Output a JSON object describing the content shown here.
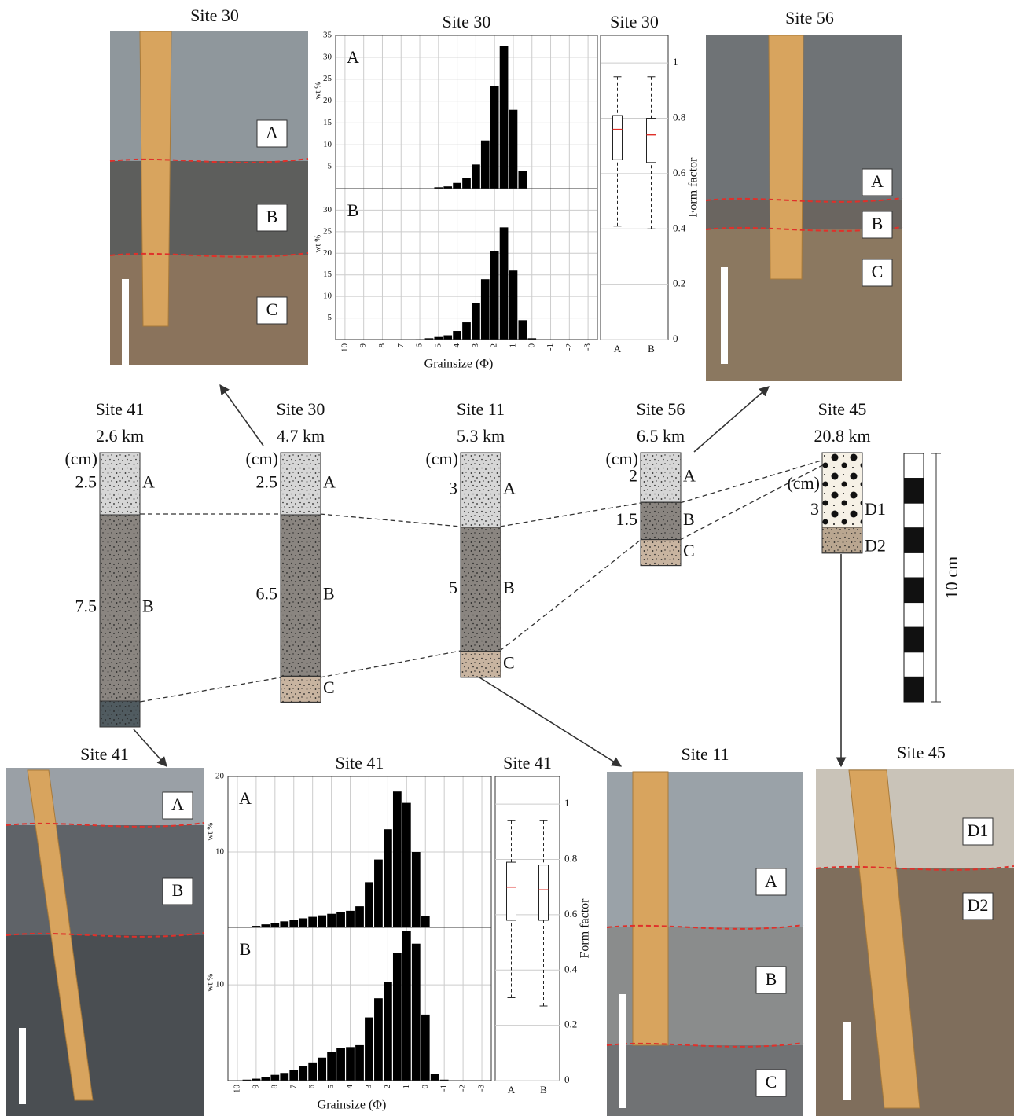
{
  "chart_data": [
    {
      "type": "bar",
      "title": "Site 30",
      "panel": "A",
      "ylabel": "wt %",
      "color": "#000000",
      "x": [
        5,
        4.5,
        4,
        3.5,
        3,
        2.5,
        2,
        1.5,
        1,
        0.5
      ],
      "values": [
        0.3,
        0.5,
        1.3,
        2.5,
        5.5,
        11,
        23.5,
        32.5,
        18,
        4
      ],
      "xlim": [
        10.5,
        -3.5
      ],
      "xticks": [
        10,
        9,
        8,
        7,
        6,
        5,
        4,
        3,
        2,
        1,
        0,
        -1,
        -2,
        -3
      ],
      "ylim": [
        0,
        35
      ],
      "yticks": [
        5,
        10,
        15,
        20,
        25,
        30,
        35
      ],
      "grid": true
    },
    {
      "type": "bar",
      "panel": "B",
      "ylabel": "wt %",
      "xlabel": "Grainsize (Φ)",
      "color": "#000000",
      "x": [
        6,
        5.5,
        5,
        4.5,
        4,
        3.5,
        3,
        2.5,
        2,
        1.5,
        1,
        0.5,
        0
      ],
      "values": [
        0.1,
        0.3,
        0.6,
        1,
        2,
        4,
        8.5,
        14,
        20.5,
        26,
        16,
        4.5,
        0.3
      ],
      "xlim": [
        10.5,
        -3.5
      ],
      "xticks": [
        10,
        9,
        8,
        7,
        6,
        5,
        4,
        3,
        2,
        1,
        0,
        -1,
        -2,
        -3
      ],
      "ylim": [
        0,
        35
      ],
      "yticks": [
        5,
        10,
        15,
        20,
        25,
        30
      ],
      "grid": true
    },
    {
      "type": "box",
      "title": "Site 30",
      "ylabel": "Form factor",
      "categories": [
        "A",
        "B"
      ],
      "median_color": "#e0302a",
      "boxes": [
        {
          "min": 0.41,
          "q1": 0.65,
          "median": 0.76,
          "q3": 0.81,
          "max": 0.95
        },
        {
          "min": 0.4,
          "q1": 0.64,
          "median": 0.74,
          "q3": 0.8,
          "max": 0.95
        }
      ],
      "ylim": [
        0,
        1.1
      ],
      "yticks": [
        0,
        0.2,
        0.4,
        0.6,
        0.8,
        1
      ],
      "grid": true
    },
    {
      "type": "bar",
      "title": "Site 41",
      "panel": "A",
      "ylabel": "wt %",
      "color": "#000000",
      "x": [
        9,
        8.5,
        8,
        7.5,
        7,
        6.5,
        6,
        5.5,
        5,
        4.5,
        4,
        3.5,
        3,
        2.5,
        2,
        1.5,
        1,
        0.5,
        0
      ],
      "values": [
        0.2,
        0.4,
        0.6,
        0.8,
        1,
        1.2,
        1.4,
        1.6,
        1.8,
        2,
        2.2,
        2.8,
        6,
        9,
        13,
        18,
        16.5,
        10,
        1.5
      ],
      "xlim": [
        10.5,
        -3.5
      ],
      "xticks": [
        10,
        9,
        8,
        7,
        6,
        5,
        4,
        3,
        2,
        1,
        0,
        -1,
        -2,
        -3
      ],
      "ylim": [
        0,
        20
      ],
      "yticks": [
        10,
        20
      ],
      "grid": true
    },
    {
      "type": "bar",
      "panel": "B",
      "ylabel": "wt %",
      "xlabel": "Grainsize (Φ)",
      "color": "#000000",
      "x": [
        9.5,
        9,
        8.5,
        8,
        7.5,
        7,
        6.5,
        6,
        5.5,
        5,
        4.5,
        4,
        3.5,
        3,
        2.5,
        2,
        1.5,
        1,
        0.5,
        0,
        -0.5,
        -1
      ],
      "values": [
        0.1,
        0.2,
        0.4,
        0.6,
        0.8,
        1.1,
        1.5,
        1.9,
        2.4,
        3,
        3.4,
        3.5,
        3.7,
        6.6,
        8.6,
        10.3,
        13.3,
        15.6,
        14.3,
        6.9,
        0.7,
        0.1
      ],
      "xlim": [
        10.5,
        -3.5
      ],
      "xticks": [
        10,
        9,
        8,
        7,
        6,
        5,
        4,
        3,
        2,
        1,
        0,
        -1,
        -2,
        -3
      ],
      "ylim": [
        0,
        16
      ],
      "yticks": [
        10
      ],
      "grid": true
    },
    {
      "type": "box",
      "title": "Site 41",
      "ylabel": "Form factor",
      "categories": [
        "A",
        "B"
      ],
      "median_color": "#e0302a",
      "boxes": [
        {
          "min": 0.3,
          "q1": 0.58,
          "median": 0.7,
          "q3": 0.79,
          "max": 0.94
        },
        {
          "min": 0.27,
          "q1": 0.58,
          "median": 0.69,
          "q3": 0.78,
          "max": 0.94
        }
      ],
      "ylim": [
        0,
        1.1
      ],
      "yticks": [
        0,
        0.2,
        0.4,
        0.6,
        0.8,
        1
      ],
      "grid": true
    }
  ],
  "sections": [
    {
      "site": "Site 41",
      "distance": "2.6 km",
      "unit_label": "(cm)",
      "units": [
        {
          "label": "A",
          "thickness": 2.5,
          "color": "#d6d6d6",
          "texture": "fine"
        },
        {
          "label": "B",
          "thickness": 7.5,
          "color": "#8a8580",
          "texture": "fine"
        },
        {
          "label": null,
          "thickness": null,
          "color": "#505b60",
          "texture": "fine"
        }
      ]
    },
    {
      "site": "Site 30",
      "distance": "4.7 km",
      "unit_label": "(cm)",
      "units": [
        {
          "label": "A",
          "thickness": 2.5,
          "color": "#d6d6d6",
          "texture": "fine"
        },
        {
          "label": "B",
          "thickness": 6.5,
          "color": "#8a8580",
          "texture": "fine"
        },
        {
          "label": "C",
          "thickness": null,
          "color": "#c8b4a0",
          "texture": "fine"
        }
      ]
    },
    {
      "site": "Site 11",
      "distance": "5.3 km",
      "unit_label": "(cm)",
      "units": [
        {
          "label": "A",
          "thickness": 3,
          "color": "#d6d6d6",
          "texture": "fine"
        },
        {
          "label": "B",
          "thickness": 5,
          "color": "#8a8580",
          "texture": "fine"
        },
        {
          "label": "C",
          "thickness": null,
          "color": "#c8b4a0",
          "texture": "fine"
        }
      ]
    },
    {
      "site": "Site 56",
      "distance": "6.5 km",
      "unit_label": "(cm)",
      "units": [
        {
          "label": "A",
          "thickness": 2,
          "color": "#d6d6d6",
          "texture": "fine"
        },
        {
          "label": "B",
          "thickness": 1.5,
          "color": "#8a8580",
          "texture": "fine"
        },
        {
          "label": "C",
          "thickness": null,
          "color": "#c8b4a0",
          "texture": "fine"
        }
      ]
    },
    {
      "site": "Site 45",
      "distance": "20.8 km",
      "unit_label": "(cm)",
      "units": [
        {
          "label": "D1",
          "thickness": 3,
          "color": "#f6f1e6",
          "texture": "coarse"
        },
        {
          "label": "D2",
          "thickness": null,
          "color": "#b9a690",
          "texture": "fine"
        }
      ]
    }
  ],
  "scale_bar": {
    "label": "10 cm"
  },
  "photos": [
    {
      "title": "Site 30",
      "labels": [
        "A",
        "B",
        "C"
      ]
    },
    {
      "title": "Site 56",
      "labels": [
        "A",
        "B",
        "C"
      ]
    },
    {
      "title": "Site 41",
      "labels": [
        "A",
        "B"
      ]
    },
    {
      "title": "Site 11",
      "labels": [
        "A",
        "B",
        "C"
      ]
    },
    {
      "title": "Site 45",
      "labels": [
        "D1",
        "D2"
      ]
    }
  ]
}
